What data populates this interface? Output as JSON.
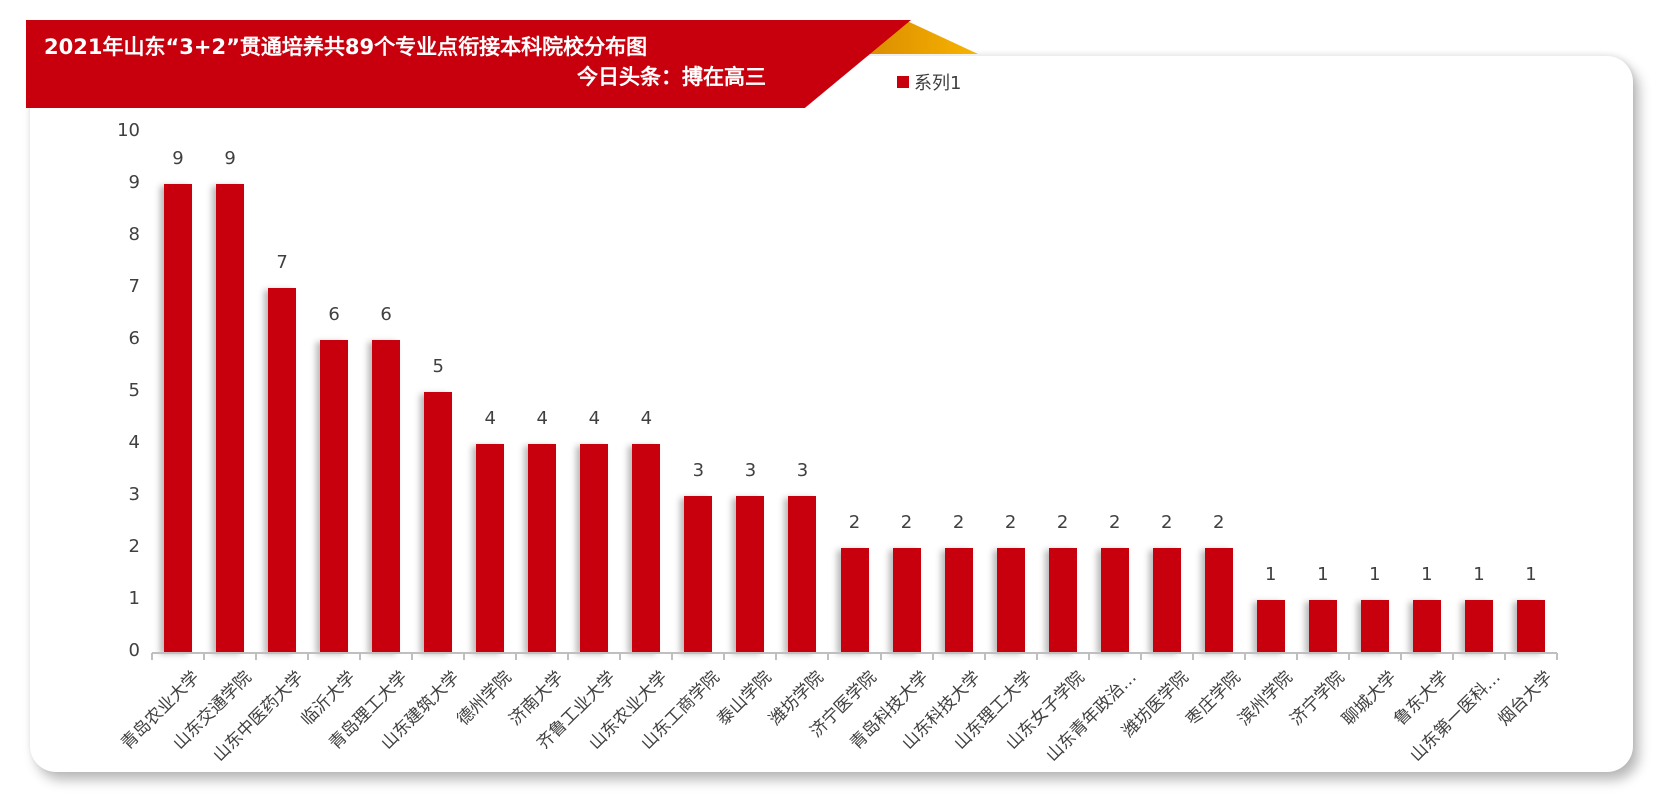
{
  "header": {
    "title": "2021年山东“3+2”贯通培养共89个专业点衔接本科院校分布图",
    "subtitle": "今日头条：搏在高三"
  },
  "colors": {
    "bar": "#c8000d",
    "banner": "#c8000d",
    "accent_gold": "#f0a800",
    "text": "#404040",
    "axis": "#bfbfbf"
  },
  "legend": {
    "items": [
      {
        "label": "系列1",
        "color": "#c8000d"
      }
    ]
  },
  "chart_data": {
    "type": "bar",
    "title": "2021年山东“3+2”贯通培养共89个专业点衔接本科院校分布图",
    "subtitle": "今日头条：搏在高三",
    "xlabel": "",
    "ylabel": "",
    "ylim": [
      0,
      10
    ],
    "yticks": [
      0,
      1,
      2,
      3,
      4,
      5,
      6,
      7,
      8,
      9,
      10
    ],
    "grid": false,
    "legend_position": "top",
    "data_labels": true,
    "categories": [
      "青岛农业大学",
      "山东交通学院",
      "山东中医药大学",
      "临沂大学",
      "青岛理工大学",
      "山东建筑大学",
      "德州学院",
      "济南大学",
      "齐鲁工业大学",
      "山东农业大学",
      "山东工商学院",
      "泰山学院",
      "潍坊学院",
      "济宁医学院",
      "青岛科技大学",
      "山东科技大学",
      "山东理工大学",
      "山东女子学院",
      "山东青年政治…",
      "潍坊医学院",
      "枣庄学院",
      "滨州学院",
      "济宁学院",
      "聊城大学",
      "鲁东大学",
      "山东第一医科…",
      "烟台大学"
    ],
    "series": [
      {
        "name": "系列1",
        "values": [
          9,
          9,
          7,
          6,
          6,
          5,
          4,
          4,
          4,
          4,
          3,
          3,
          3,
          2,
          2,
          2,
          2,
          2,
          2,
          2,
          2,
          1,
          1,
          1,
          1,
          1,
          1
        ]
      }
    ]
  }
}
